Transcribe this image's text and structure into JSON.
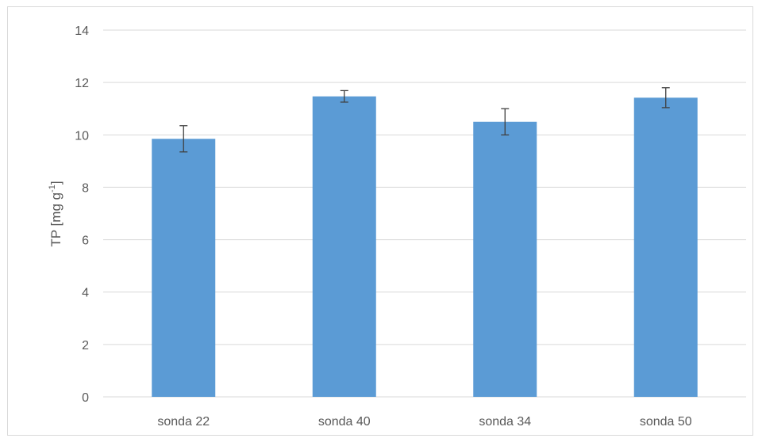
{
  "chart_data": {
    "type": "bar",
    "categories": [
      "sonda 22",
      "sonda 40",
      "sonda 34",
      "sonda 50"
    ],
    "series": [
      {
        "values": [
          9.85,
          11.47,
          10.5,
          11.42
        ],
        "error": [
          0.5,
          0.22,
          0.5,
          0.38
        ]
      }
    ],
    "ylabel_main": "TP [mg g",
    "ylabel_sup": "-1",
    "ylabel_end": "]",
    "ylim": [
      0,
      14
    ],
    "yticks": [
      0,
      2,
      4,
      6,
      8,
      10,
      12,
      14
    ],
    "grid": true,
    "legend": "none",
    "bar_color": "#5b9bd5",
    "error_color": "#404040",
    "grid_color": "#d9d9d9"
  }
}
